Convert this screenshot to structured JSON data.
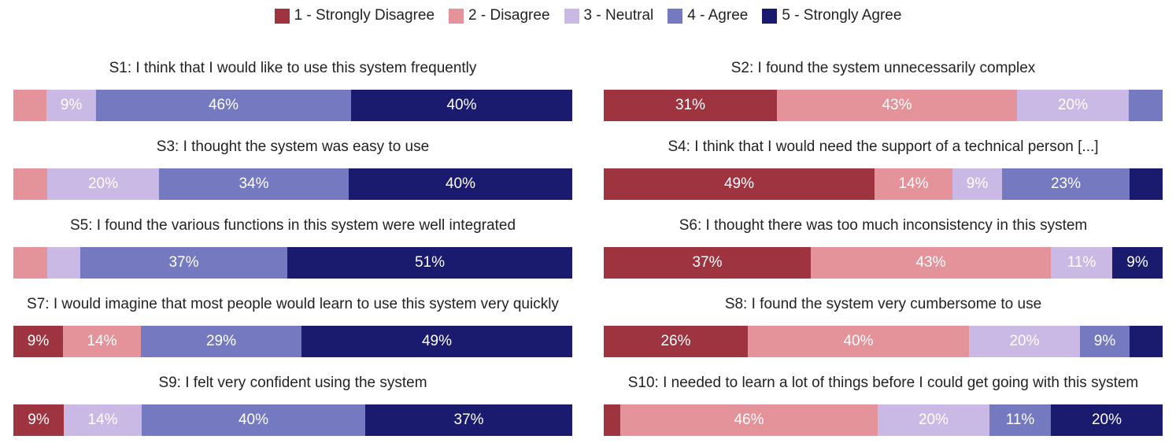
{
  "chart_data": {
    "type": "bar",
    "orientation": "horizontal",
    "stacked": true,
    "normalized_percent": true,
    "legend": {
      "placement": "top-center",
      "entries": [
        {
          "label": "1 - Strongly Disagree",
          "color": "#9e3440"
        },
        {
          "label": "2 - Disagree",
          "color": "#e4939a"
        },
        {
          "label": "3 - Neutral",
          "color": "#c9b9e4"
        },
        {
          "label": "4 - Agree",
          "color": "#7479c0"
        },
        {
          "label": "5 - Strongly Agree",
          "color": "#1a1a6e"
        }
      ]
    },
    "label_colors": {
      "dark": "#ffffff",
      "light": "#ffffff"
    },
    "statements": [
      {
        "title": "S1: I think that I would like to use this system frequently",
        "values": [
          0,
          6,
          9,
          46,
          40
        ],
        "labels": [
          "",
          "",
          "9%",
          "46%",
          "40%"
        ]
      },
      {
        "title": "S2: I found the system unnecessarily complex",
        "values": [
          31,
          43,
          20,
          6,
          0
        ],
        "labels": [
          "31%",
          "43%",
          "20%",
          "",
          ""
        ]
      },
      {
        "title": "S3: I thought the system was easy to use",
        "values": [
          0,
          6,
          20,
          34,
          40
        ],
        "labels": [
          "",
          "",
          "20%",
          "34%",
          "40%"
        ]
      },
      {
        "title": "S4: I think that I would need the support of a technical person [...]",
        "values": [
          49,
          14,
          9,
          23,
          6
        ],
        "labels": [
          "49%",
          "14%",
          "9%",
          "23%",
          ""
        ]
      },
      {
        "title": "S5: I found the various functions in this system were well integrated",
        "values": [
          0,
          6,
          6,
          37,
          51
        ],
        "labels": [
          "",
          "",
          "",
          "37%",
          "51%"
        ]
      },
      {
        "title": "S6: I thought there was too much inconsistency in this system",
        "values": [
          37,
          43,
          11,
          0,
          9
        ],
        "labels": [
          "37%",
          "43%",
          "11%",
          "",
          "9%"
        ]
      },
      {
        "title": "S7: I would imagine that most people would learn to use this system very quickly",
        "values": [
          9,
          14,
          0,
          29,
          49
        ],
        "labels": [
          "9%",
          "14%",
          "",
          "29%",
          "49%"
        ]
      },
      {
        "title": "S8: I found the system very cumbersome to use",
        "values": [
          26,
          40,
          20,
          9,
          6
        ],
        "labels": [
          "26%",
          "40%",
          "20%",
          "9%",
          ""
        ]
      },
      {
        "title": "S9: I felt very confident using the system",
        "values": [
          9,
          0,
          14,
          40,
          37
        ],
        "labels": [
          "9%",
          "",
          "14%",
          "40%",
          "37%"
        ]
      },
      {
        "title": "S10: I needed to learn a lot of things before I could get going with this system",
        "values": [
          3,
          46,
          20,
          11,
          20
        ],
        "labels": [
          "",
          "46%",
          "20%",
          "11%",
          "20%"
        ]
      }
    ]
  }
}
